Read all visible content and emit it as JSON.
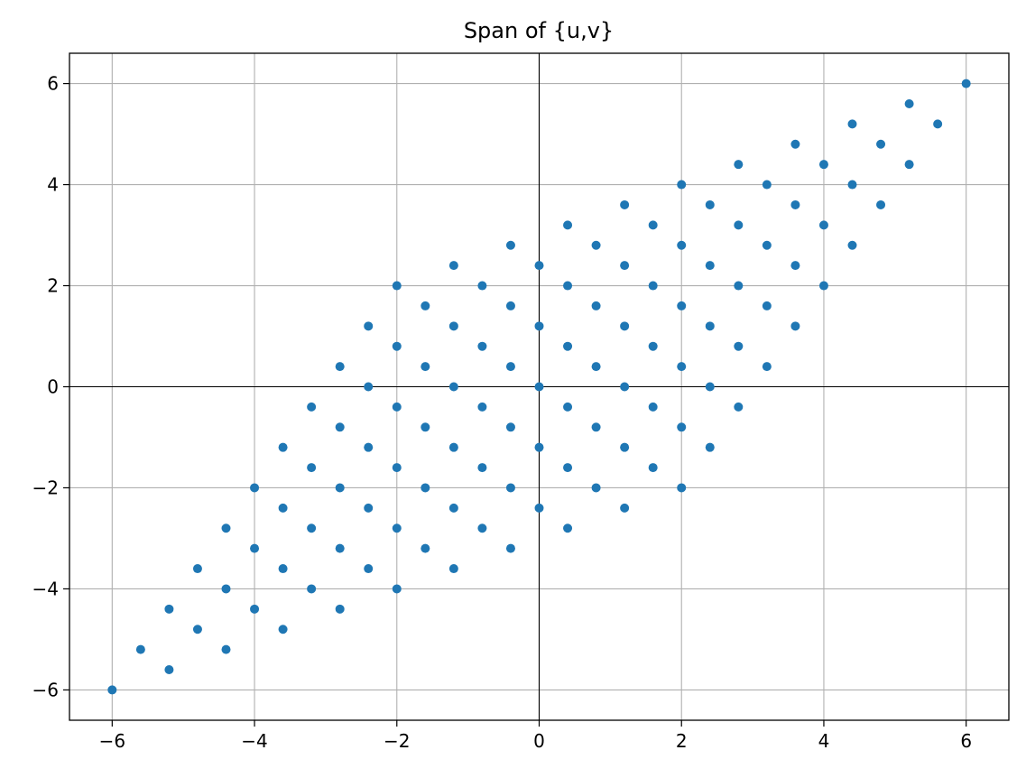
{
  "chart_data": {
    "type": "scatter",
    "title": "Span of {u,v}",
    "xlabel": "",
    "ylabel": "",
    "xlim": [
      -6.6,
      6.6
    ],
    "ylim": [
      -6.6,
      6.6
    ],
    "xticks": [
      -6,
      -4,
      -2,
      0,
      2,
      4,
      6
    ],
    "yticks": [
      -6,
      -4,
      -2,
      0,
      2,
      4,
      6
    ],
    "xtick_labels": [
      "−6",
      "−4",
      "−2",
      "0",
      "2",
      "4",
      "6"
    ],
    "ytick_labels": [
      "−6",
      "−4",
      "−2",
      "0",
      "2",
      "4",
      "6"
    ],
    "grid": true,
    "axis_lines_at_zero": true,
    "marker_color": "#1f77b4",
    "generator_vectors": {
      "u": [
        0.4,
        -0.4
      ],
      "v": [
        0.4,
        0.8
      ]
    },
    "coefficient_range": [
      -5,
      5
    ],
    "points": [
      [
        -6,
        -6
      ],
      [
        -5.6,
        -5.2
      ],
      [
        -5.2,
        -5.6
      ],
      [
        -5.2,
        -4.4
      ],
      [
        -4.8,
        -4.8
      ],
      [
        -4.8,
        -3.6
      ],
      [
        -4.4,
        -5.2
      ],
      [
        -4.4,
        -4
      ],
      [
        -4.4,
        -2.8
      ],
      [
        -4,
        -4.4
      ],
      [
        -4,
        -3.2
      ],
      [
        -4,
        -2
      ],
      [
        -3.6,
        -4.8
      ],
      [
        -3.6,
        -3.6
      ],
      [
        -3.6,
        -2.4
      ],
      [
        -3.6,
        -1.2
      ],
      [
        -3.2,
        -4
      ],
      [
        -3.2,
        -2.8
      ],
      [
        -3.2,
        -1.6
      ],
      [
        -3.2,
        -0.4
      ],
      [
        -2.8,
        -4.4
      ],
      [
        -2.8,
        -3.2
      ],
      [
        -2.8,
        -2
      ],
      [
        -2.8,
        -0.8
      ],
      [
        -2.8,
        0.4
      ],
      [
        -2.4,
        -3.6
      ],
      [
        -2.4,
        -2.4
      ],
      [
        -2.4,
        -1.2
      ],
      [
        -2.4,
        0
      ],
      [
        -2.4,
        1.2
      ],
      [
        -2,
        -4
      ],
      [
        -2,
        -2.8
      ],
      [
        -2,
        -1.6
      ],
      [
        -2,
        -0.4
      ],
      [
        -2,
        0.8
      ],
      [
        -2,
        2
      ],
      [
        -1.6,
        -3.2
      ],
      [
        -1.6,
        -2
      ],
      [
        -1.6,
        -0.8
      ],
      [
        -1.6,
        0.4
      ],
      [
        -1.6,
        1.6
      ],
      [
        -1.2,
        -3.6
      ],
      [
        -1.2,
        -2.4
      ],
      [
        -1.2,
        -1.2
      ],
      [
        -1.2,
        0
      ],
      [
        -1.2,
        1.2
      ],
      [
        -1.2,
        2.4
      ],
      [
        -0.8,
        -2.8
      ],
      [
        -0.8,
        -1.6
      ],
      [
        -0.8,
        -0.4
      ],
      [
        -0.8,
        0.8
      ],
      [
        -0.8,
        2
      ],
      [
        -0.4,
        -3.2
      ],
      [
        -0.4,
        -2
      ],
      [
        -0.4,
        -0.8
      ],
      [
        -0.4,
        0.4
      ],
      [
        -0.4,
        1.6
      ],
      [
        -0.4,
        2.8
      ],
      [
        0,
        -2.4
      ],
      [
        0,
        -1.2
      ],
      [
        0,
        0
      ],
      [
        0,
        1.2
      ],
      [
        0,
        2.4
      ],
      [
        0.4,
        -2.8
      ],
      [
        0.4,
        -1.6
      ],
      [
        0.4,
        -0.4
      ],
      [
        0.4,
        0.8
      ],
      [
        0.4,
        2
      ],
      [
        0.4,
        3.2
      ],
      [
        0.8,
        -2
      ],
      [
        0.8,
        -0.8
      ],
      [
        0.8,
        0.4
      ],
      [
        0.8,
        1.6
      ],
      [
        0.8,
        2.8
      ],
      [
        1.2,
        -2.4
      ],
      [
        1.2,
        -1.2
      ],
      [
        1.2,
        0
      ],
      [
        1.2,
        1.2
      ],
      [
        1.2,
        2.4
      ],
      [
        1.2,
        3.6
      ],
      [
        1.6,
        -1.6
      ],
      [
        1.6,
        -0.4
      ],
      [
        1.6,
        0.8
      ],
      [
        1.6,
        2
      ],
      [
        1.6,
        3.2
      ],
      [
        2,
        -2
      ],
      [
        2,
        -0.8
      ],
      [
        2,
        0.4
      ],
      [
        2,
        1.6
      ],
      [
        2,
        2.8
      ],
      [
        2,
        4
      ],
      [
        2.4,
        -1.2
      ],
      [
        2.4,
        0
      ],
      [
        2.4,
        1.2
      ],
      [
        2.4,
        2.4
      ],
      [
        2.4,
        3.6
      ],
      [
        2.8,
        -0.4
      ],
      [
        2.8,
        0.8
      ],
      [
        2.8,
        2
      ],
      [
        2.8,
        3.2
      ],
      [
        2.8,
        4.4
      ],
      [
        3.2,
        0.4
      ],
      [
        3.2,
        1.6
      ],
      [
        3.2,
        2.8
      ],
      [
        3.2,
        4
      ],
      [
        3.6,
        1.2
      ],
      [
        3.6,
        2.4
      ],
      [
        3.6,
        3.6
      ],
      [
        3.6,
        4.8
      ],
      [
        4,
        2
      ],
      [
        4,
        3.2
      ],
      [
        4,
        4.4
      ],
      [
        4.4,
        2.8
      ],
      [
        4.4,
        4
      ],
      [
        4.4,
        5.2
      ],
      [
        4.8,
        3.6
      ],
      [
        4.8,
        4.8
      ],
      [
        5.2,
        4.4
      ],
      [
        5.2,
        5.6
      ],
      [
        5.6,
        5.2
      ],
      [
        6,
        6
      ]
    ]
  }
}
